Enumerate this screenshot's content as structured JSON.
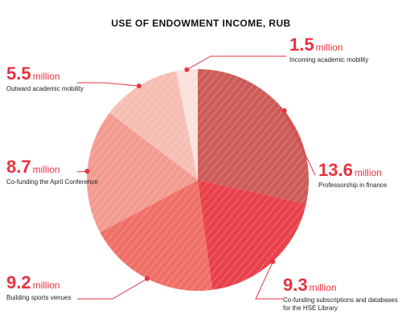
{
  "chart_data": {
    "type": "pie",
    "title": "USE OF ENDOWMENT INCOME, RUB",
    "unit": "million",
    "slices": [
      {
        "value": 1.5,
        "value_label": "1.5",
        "label": "Incoming academic mobility",
        "color": "#fbe1dc"
      },
      {
        "value": 13.6,
        "value_label": "13.6",
        "label": "Professorship in finance",
        "color": "#cc5b57"
      },
      {
        "value": 9.3,
        "value_label": "9.3",
        "label": "Co-funding subscriptions and databases for the HSE Library",
        "color": "#e9404a"
      },
      {
        "value": 9.2,
        "value_label": "9.2",
        "label": "Building sports venues",
        "color": "#ef6f67"
      },
      {
        "value": 8.7,
        "value_label": "8.7",
        "label": "Co-funding the April Conference",
        "color": "#f39a8f"
      },
      {
        "value": 5.5,
        "value_label": "5.5",
        "label": "Outward academic mobility",
        "color": "#f6bdb3"
      }
    ],
    "accent_color": "#e8333f"
  }
}
